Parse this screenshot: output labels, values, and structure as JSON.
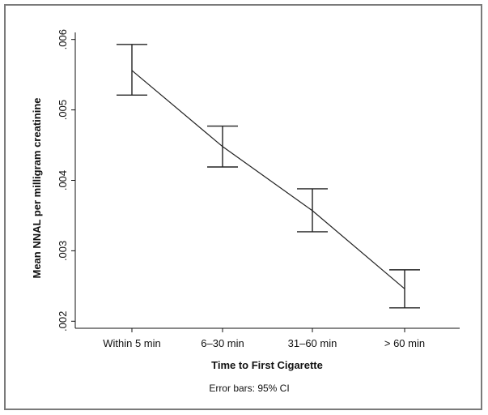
{
  "chart_data": {
    "type": "line",
    "categories": [
      "Within 5 min",
      "6–30 min",
      "31–60 min",
      "> 60 min"
    ],
    "series": [
      {
        "values": [
          0.00556,
          0.00448,
          0.00357,
          0.00246
        ],
        "ci_low": [
          0.00521,
          0.00419,
          0.00327,
          0.00219
        ],
        "ci_high": [
          0.00593,
          0.00477,
          0.00388,
          0.00273
        ]
      }
    ],
    "xlabel": "Time to First Cigarette",
    "ylabel": "Mean NNAL per milligram creatinine",
    "ylim": [
      0.0019,
      0.0061
    ],
    "yticks": [
      0.002,
      0.003,
      0.004,
      0.005,
      0.006
    ],
    "ytick_labels": [
      ".002",
      ".003",
      ".004",
      ".005",
      ".006"
    ],
    "note": "Error bars: 95% CI",
    "grid": false,
    "colors": {
      "line": "#222222",
      "axis": "#111111",
      "frame": "#7a7a7a"
    }
  }
}
